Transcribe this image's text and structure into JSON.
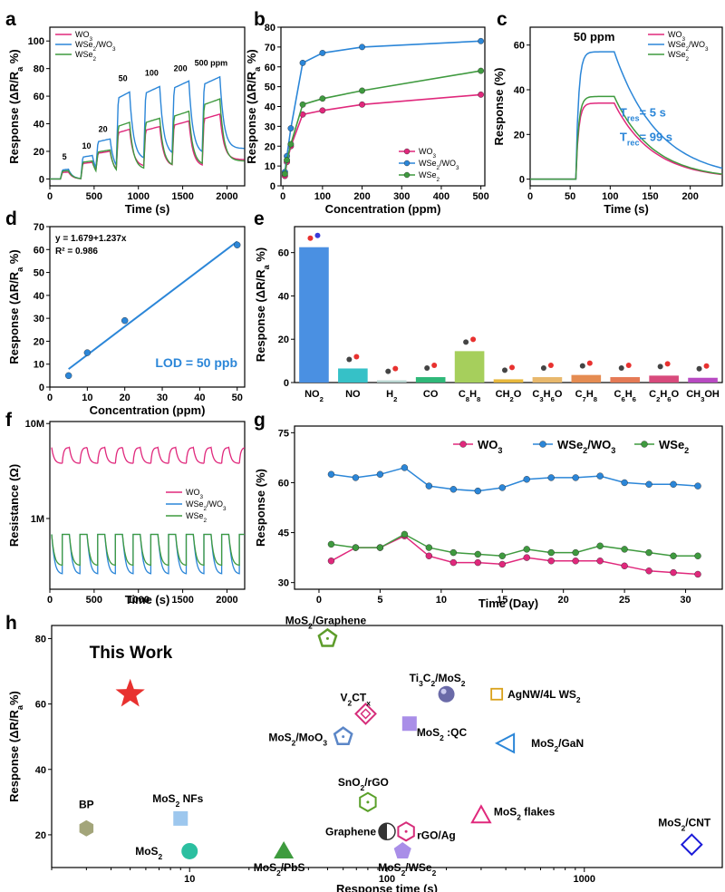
{
  "colors": {
    "wo3": "#e0287c",
    "wse2wo3": "#2b86d8",
    "wse2": "#3f9a3f",
    "accent": "#2b86d8"
  },
  "panel_letters": [
    "a",
    "b",
    "c",
    "d",
    "e",
    "f",
    "g",
    "h"
  ],
  "legend_series": {
    "wo3": "WO3",
    "wse2wo3": "WSe2/WO3",
    "wse2": "WSe2"
  },
  "panel_a": {
    "ylabel": "Response (ΔR/Ra %)",
    "xlabel": "Time (s)",
    "conc_labels": [
      "5",
      "10",
      "20",
      "50",
      "100",
      "200",
      "500 ppm"
    ]
  },
  "panel_b": {
    "ylabel": "Response (ΔR/Ra %)",
    "xlabel": "Concentration (ppm)"
  },
  "panel_c": {
    "ylabel": "Response (%)",
    "xlabel": "Time (s)",
    "annotation": "50 ppm",
    "tres": "Tres= 5 s",
    "trec": "Trec= 99 s"
  },
  "panel_d": {
    "ylabel": "Response (ΔR/Ra %)",
    "xlabel": "Concentration (ppm)",
    "equation": "y = 1.679+1.237x",
    "r2": "R² = 0.986",
    "lod": "LOD = 50 ppb"
  },
  "panel_e": {
    "ylabel": "Response (ΔR/Ra %)"
  },
  "panel_f": {
    "ylabel": "Resistance (Ω)",
    "xlabel": "Time (s)"
  },
  "panel_g": {
    "ylabel": "Response (%)",
    "xlabel": "Time (Day)"
  },
  "panel_h": {
    "ylabel": "Response (ΔR/Ra%)",
    "xlabel": "Response time (s)",
    "this_work": "This Work"
  },
  "chart_data": [
    {
      "panel": "a",
      "type": "line",
      "xlabel": "Time (s)",
      "ylabel": "Response (ΔR/Ra %)",
      "xlim": [
        0,
        2200
      ],
      "ylim": [
        -5,
        110
      ],
      "xticks": [
        0,
        500,
        1000,
        1500,
        2000
      ],
      "yticks": [
        0,
        20,
        40,
        60,
        80,
        100
      ],
      "pulses": [
        {
          "start": 120,
          "end": 210,
          "conc": "5"
        },
        {
          "start": 350,
          "end": 480,
          "conc": "10"
        },
        {
          "start": 520,
          "end": 680,
          "conc": "20"
        },
        {
          "start": 750,
          "end": 900,
          "conc": "50"
        },
        {
          "start": 1060,
          "end": 1240,
          "conc": "100"
        },
        {
          "start": 1380,
          "end": 1570,
          "conc": "200"
        },
        {
          "start": 1720,
          "end": 1920,
          "conc": "500 ppm"
        }
      ],
      "series": [
        {
          "name": "WO3",
          "peaks": [
            5,
            12,
            20,
            36,
            38,
            42,
            47
          ],
          "base": [
            0,
            3,
            4,
            9,
            9,
            9,
            14
          ]
        },
        {
          "name": "WSe2/WO3",
          "peaks": [
            7,
            17,
            29,
            63,
            67,
            71,
            74
          ],
          "base": [
            0,
            2,
            5,
            14,
            17,
            18,
            22
          ]
        },
        {
          "name": "WSe2",
          "peaks": [
            6,
            13,
            21,
            41,
            44,
            49,
            58
          ],
          "base": [
            0,
            1,
            3,
            7,
            9,
            10,
            13
          ]
        }
      ]
    },
    {
      "panel": "b",
      "type": "line",
      "xlabel": "Concentration (ppm)",
      "ylabel": "Response (ΔR/Ra %)",
      "xlim": [
        -5,
        510
      ],
      "ylim": [
        0,
        80
      ],
      "xticks": [
        0,
        100,
        200,
        300,
        400,
        500
      ],
      "yticks": [
        0,
        10,
        20,
        30,
        40,
        50,
        60,
        70,
        80
      ],
      "x": [
        5,
        10,
        20,
        50,
        100,
        200,
        500
      ],
      "series": [
        {
          "name": "WO3",
          "values": [
            5,
            12,
            20,
            36,
            38,
            41,
            46
          ]
        },
        {
          "name": "WSe2/WO3",
          "values": [
            7,
            15,
            29,
            62,
            67,
            70,
            73
          ]
        },
        {
          "name": "WSe2",
          "values": [
            6,
            13,
            21,
            41,
            44,
            48,
            58
          ]
        }
      ]
    },
    {
      "panel": "c",
      "type": "line",
      "xlabel": "Time (s)",
      "ylabel": "Response (%)",
      "xlim": [
        0,
        240
      ],
      "ylim": [
        -3,
        68
      ],
      "xticks": [
        0,
        50,
        100,
        150,
        200
      ],
      "yticks": [
        0,
        20,
        40,
        60
      ],
      "series": [
        {
          "name": "WO3",
          "plateau": 34
        },
        {
          "name": "WSe2/WO3",
          "plateau": 57
        },
        {
          "name": "WSe2",
          "plateau": 37
        }
      ],
      "gas_on": 57,
      "gas_off": 105
    },
    {
      "panel": "d",
      "type": "scatter",
      "xlabel": "Concentration (ppm)",
      "ylabel": "Response (ΔR/Ra %)",
      "xlim": [
        0,
        52
      ],
      "ylim": [
        0,
        70
      ],
      "xticks": [
        0,
        10,
        20,
        30,
        40,
        50
      ],
      "yticks": [
        0,
        10,
        20,
        30,
        40,
        50,
        60,
        70
      ],
      "x": [
        5,
        10,
        20,
        50
      ],
      "y": [
        5,
        15,
        29,
        62
      ],
      "fit": {
        "intercept": 1.679,
        "slope": 1.237
      }
    },
    {
      "panel": "e",
      "type": "bar",
      "ylabel": "Response (ΔR/Ra %)",
      "ylim": [
        0,
        72
      ],
      "yticks": [
        0,
        20,
        40,
        60
      ],
      "categories": [
        "NO2",
        "NO",
        "H2",
        "CO",
        "C8H8",
        "CH2O",
        "C3H6O",
        "C7H8",
        "C6H6",
        "C2H6O",
        "CH3OH"
      ],
      "values": [
        62.5,
        6.5,
        1,
        2.5,
        14.5,
        1.5,
        2.5,
        3.5,
        2.5,
        3.2,
        2.2
      ],
      "bar_colors": [
        "#4a90e2",
        "#36c1c7",
        "#b7d3cf",
        "#2fb879",
        "#a6cf5c",
        "#e8b83c",
        "#e8b86c",
        "#e58c52",
        "#e57a55",
        "#d84a7c",
        "#b84ac2"
      ]
    },
    {
      "panel": "f",
      "type": "line",
      "xlabel": "Time (s)",
      "ylabel": "Resistance (Ω)",
      "xlim": [
        0,
        2200
      ],
      "yscale": "log",
      "xticks": [
        0,
        500,
        1000,
        1500,
        2000
      ],
      "yticks": [
        "1M",
        "10M"
      ],
      "series": [
        {
          "name": "WO3",
          "low": "3.8M",
          "high": "5.6M"
        },
        {
          "name": "WSe2/WO3",
          "low": "0.26M",
          "high": "0.68M"
        },
        {
          "name": "WSe2",
          "low": "0.32M",
          "high": "0.68M"
        }
      ],
      "cycles": 11
    },
    {
      "panel": "g",
      "type": "line",
      "xlabel": "Time (Day)",
      "ylabel": "Response (%)",
      "xlim": [
        -2,
        33
      ],
      "ylim": [
        28,
        77
      ],
      "xticks": [
        0,
        5,
        10,
        15,
        20,
        25,
        30
      ],
      "yticks": [
        30,
        45,
        60,
        75
      ],
      "x": [
        1,
        3,
        5,
        7,
        9,
        11,
        13,
        15,
        17,
        19,
        21,
        23,
        25,
        27,
        29,
        31
      ],
      "series": [
        {
          "name": "WO3",
          "values": [
            36.5,
            40.5,
            40.5,
            44,
            38,
            36,
            36,
            35.5,
            37.5,
            36.5,
            36.5,
            36.5,
            35,
            33.5,
            33,
            32.5
          ]
        },
        {
          "name": "WSe2/WO3",
          "values": [
            62.5,
            61.5,
            62.5,
            64.5,
            59,
            58,
            57.5,
            58.5,
            61,
            61.5,
            61.5,
            62,
            60,
            59.5,
            59.5,
            59
          ]
        },
        {
          "name": "WSe2",
          "values": [
            41.5,
            40.5,
            40.5,
            44.5,
            40.5,
            39,
            38.5,
            38,
            40,
            39,
            39,
            41,
            40,
            39,
            38,
            38
          ]
        }
      ]
    },
    {
      "panel": "h",
      "type": "scatter",
      "xlabel": "Response time (s)",
      "ylabel": "Response (ΔR/Ra%)",
      "xscale": "log",
      "xlim": [
        2,
        5000
      ],
      "ylim": [
        10,
        84
      ],
      "xticks": [
        10,
        100,
        1000
      ],
      "yticks": [
        20,
        40,
        60,
        80
      ],
      "points": [
        {
          "label": "This Work",
          "x": 5,
          "y": 63,
          "shape": "star",
          "color": "#e8312f"
        },
        {
          "label": "MoS2/Graphene",
          "x": 50,
          "y": 80,
          "shape": "pentagon-ring",
          "color": "#5d9c2a"
        },
        {
          "label": "Ti3C2/MoS2",
          "x": 200,
          "y": 63,
          "shape": "sphere",
          "color": "#6a6aa8"
        },
        {
          "label": "AgNW/4L WS2",
          "x": 360,
          "y": 63,
          "shape": "open-square",
          "color": "#d9a11a"
        },
        {
          "label": "V2CTx",
          "x": 78,
          "y": 57,
          "shape": "diamond-ring",
          "color": "#d62d7a"
        },
        {
          "label": "MoS2 :QC",
          "x": 130,
          "y": 54,
          "shape": "square",
          "color": "#a98ee8"
        },
        {
          "label": "MoS2/MoO3",
          "x": 60,
          "y": 50,
          "shape": "pentagon-ring",
          "color": "#5b86c7"
        },
        {
          "label": "MoS2/GaN",
          "x": 400,
          "y": 48,
          "shape": "open-triangle-left",
          "color": "#2b86d8"
        },
        {
          "label": "SnO2/rGO",
          "x": 80,
          "y": 30,
          "shape": "hexagon-ring",
          "color": "#5aa02a"
        },
        {
          "label": "MoS2 flakes",
          "x": 300,
          "y": 26,
          "shape": "open-triangle",
          "color": "#e0287c"
        },
        {
          "label": "Graphene",
          "x": 100,
          "y": 21,
          "shape": "half-circle",
          "color": "#333333"
        },
        {
          "label": "rGO/Ag",
          "x": 125,
          "y": 21,
          "shape": "hexagon-ring",
          "color": "#d62d7a"
        },
        {
          "label": "MoS2/WSe2",
          "x": 120,
          "y": 15,
          "shape": "pentagon",
          "color": "#a98ee8"
        },
        {
          "label": "BP",
          "x": 3,
          "y": 22,
          "shape": "hexagon",
          "color": "#a3a57a"
        },
        {
          "label": "MoS2 NFs",
          "x": 9,
          "y": 25,
          "shape": "square",
          "color": "#9dc7ee"
        },
        {
          "label": "MoS2",
          "x": 10,
          "y": 15,
          "shape": "circle",
          "color": "#2bbfa0"
        },
        {
          "label": "MoS2/PbS",
          "x": 30,
          "y": 15,
          "shape": "triangle",
          "color": "#3e9b3e"
        },
        {
          "label": "MoS2/CNT",
          "x": 3500,
          "y": 17,
          "shape": "open-diamond",
          "color": "#1a1ad8"
        }
      ]
    }
  ]
}
